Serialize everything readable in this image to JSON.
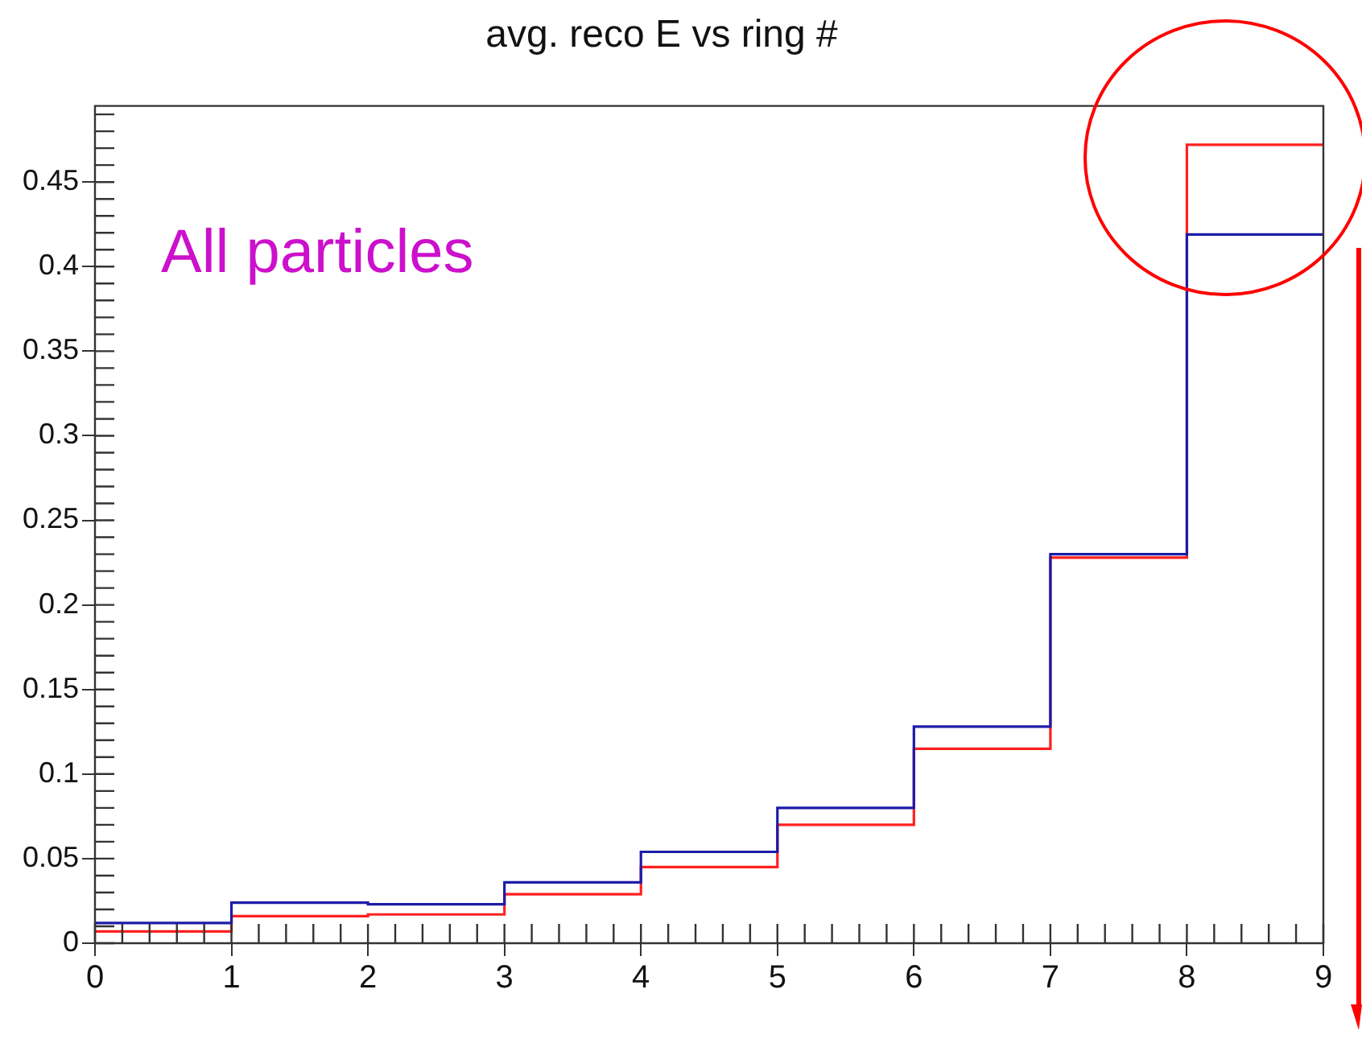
{
  "chart_data": {
    "type": "histogram",
    "title": "avg. reco E vs ring #",
    "bins": [
      0,
      1,
      2,
      3,
      4,
      5,
      6,
      7,
      8,
      9
    ],
    "series": [
      {
        "color": "#1c1ca8",
        "values": [
          0.012,
          0.024,
          0.023,
          0.036,
          0.054,
          0.08,
          0.128,
          0.23,
          0.419
        ]
      },
      {
        "color": "#ff2020",
        "values": [
          0.007,
          0.016,
          0.017,
          0.029,
          0.045,
          0.07,
          0.115,
          0.228,
          0.472
        ]
      }
    ],
    "annotations": [
      "All particles"
    ],
    "xlim": [
      0,
      9
    ],
    "xticks": [
      0,
      1,
      2,
      3,
      4,
      5,
      6,
      7,
      8,
      9
    ],
    "ylim": [
      0,
      0.495
    ],
    "yticks": [
      0,
      0.05,
      0.1,
      0.15,
      0.2,
      0.25,
      0.3,
      0.35,
      0.4,
      0.45
    ],
    "grid": false,
    "legend": false
  }
}
